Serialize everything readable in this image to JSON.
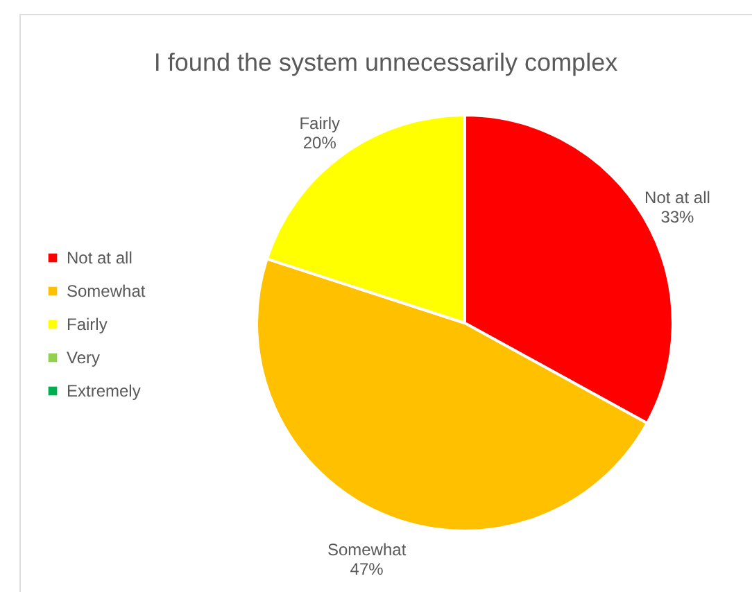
{
  "chart_data": {
    "type": "pie",
    "title": "I found the system unnecessarily complex",
    "categories": [
      "Not at all",
      "Somewhat",
      "Fairly",
      "Very",
      "Extremely"
    ],
    "values": [
      33,
      47,
      20,
      0,
      0
    ],
    "colors": [
      "#ff0000",
      "#ffc000",
      "#ffff00",
      "#92d050",
      "#00b050"
    ],
    "value_labels": [
      "33%",
      "47%",
      "20%",
      null,
      null
    ],
    "legend": "left"
  }
}
